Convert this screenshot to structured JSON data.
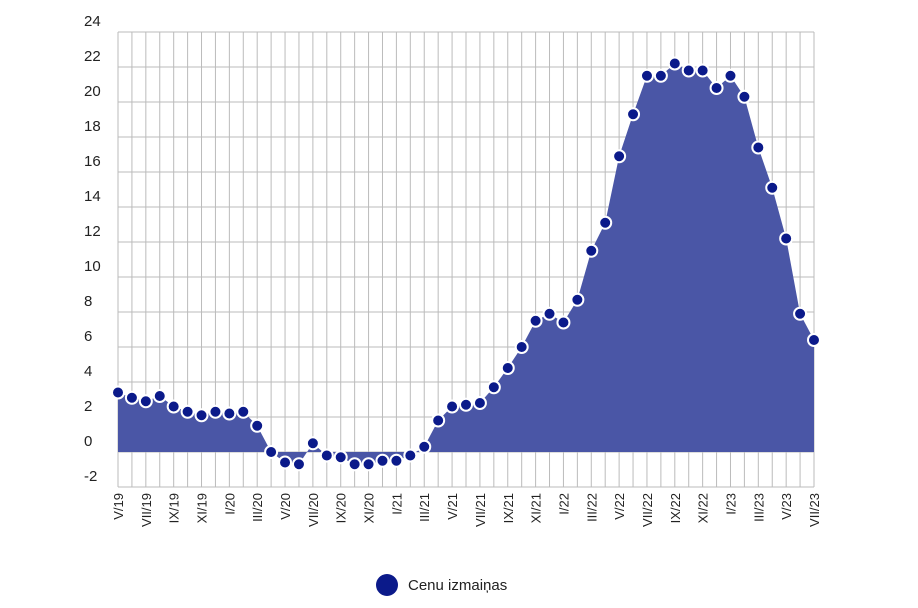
{
  "chart_data": {
    "type": "area",
    "title": "",
    "xlabel": "",
    "ylabel": "",
    "ylim": [
      -2,
      24
    ],
    "yticks": [
      -2,
      0,
      2,
      4,
      6,
      8,
      10,
      12,
      14,
      16,
      18,
      20,
      22,
      24
    ],
    "grid": true,
    "legend_position": "bottom-center",
    "colors": {
      "area": "#4a56a6",
      "marker": "#0b1a8a",
      "marker_edge": "#ffffff",
      "grid": "#bbbbbb"
    },
    "categories": [
      "V/19",
      "VI/19",
      "VII/19",
      "VIII/19",
      "IX/19",
      "X/19",
      "XI/19",
      "XII/19",
      "I/20",
      "II/20",
      "III/20",
      "IV/20",
      "V/20",
      "VI/20",
      "VII/20",
      "VIII/20",
      "IX/20",
      "X/20",
      "XI/20",
      "XII/20",
      "I/21",
      "II/21",
      "III/21",
      "IV/21",
      "V/21",
      "VI/21",
      "VII/21",
      "VIII/21",
      "IX/21",
      "X/21",
      "XI/21",
      "XII/21",
      "I/22",
      "II/22",
      "III/22",
      "IV/22",
      "V/22",
      "VI/22",
      "VII/22",
      "VIII/22",
      "IX/22",
      "X/22",
      "XI/22",
      "XII/22",
      "I/23",
      "II/23",
      "III/23",
      "IV/23",
      "V/23",
      "VI/23",
      "VII/23"
    ],
    "x_tick_labels": [
      "V/19",
      "VII/19",
      "IX/19",
      "XI/19",
      "I/20",
      "III/20",
      "V/20",
      "VII/20",
      "IX/20",
      "XI/20",
      "I/21",
      "III/21",
      "V/21",
      "VII/21",
      "IX/21",
      "XI/21",
      "I/22",
      "III/22",
      "V/22",
      "VII/22",
      "IX/22",
      "XI/22",
      "I/23",
      "III/23",
      "V/23",
      "VII/23"
    ],
    "series": [
      {
        "name": "Cenu izmaiņas",
        "values": [
          3.4,
          3.1,
          2.9,
          3.2,
          2.6,
          2.3,
          2.1,
          2.3,
          2.2,
          2.3,
          1.5,
          0.0,
          -0.6,
          -0.7,
          0.5,
          -0.2,
          -0.3,
          -0.7,
          -0.7,
          -0.5,
          -0.5,
          -0.2,
          0.3,
          1.8,
          2.6,
          2.7,
          2.8,
          3.7,
          4.8,
          6.0,
          7.5,
          7.9,
          7.4,
          8.7,
          11.5,
          13.1,
          16.9,
          19.3,
          21.5,
          21.5,
          22.2,
          21.8,
          21.8,
          20.8,
          21.5,
          20.3,
          17.4,
          15.1,
          12.2,
          7.9,
          6.4
        ]
      }
    ]
  }
}
